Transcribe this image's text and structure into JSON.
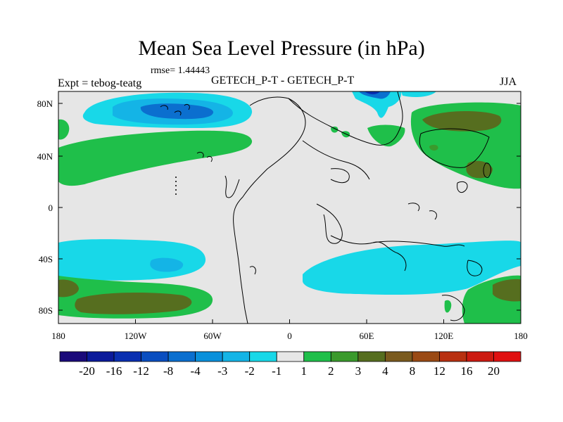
{
  "title": "Mean Sea Level Pressure (in hPa)",
  "rmse": "rmse= 1.44443",
  "expt": "Expt = tebog-teatg",
  "center_label": "GETECH_P-T - GETECH_P-T",
  "season": "JJA",
  "axes": {
    "lon_labels": [
      "180",
      "120W",
      "60W",
      "0",
      "60E",
      "120E",
      "180"
    ],
    "lat_labels": [
      "80N",
      "40N",
      "0",
      "40S",
      "80S"
    ]
  },
  "colorbar": {
    "labels": [
      "-20",
      "-16",
      "-12",
      "-8",
      "-4",
      "-3",
      "-2",
      "-1",
      "1",
      "2",
      "3",
      "4",
      "8",
      "12",
      "16",
      "20"
    ],
    "colors": [
      "#1a0a7a",
      "#0b1a9a",
      "#0a2fb0",
      "#0a4ec0",
      "#0b6fcf",
      "#0a90db",
      "#14b4e6",
      "#18d8e8",
      "#e6e6e6",
      "#1fbf4a",
      "#3a9a2c",
      "#566e1f",
      "#7a5a1e",
      "#9a4a14",
      "#b83010",
      "#cc1a10",
      "#e01010"
    ]
  }
}
